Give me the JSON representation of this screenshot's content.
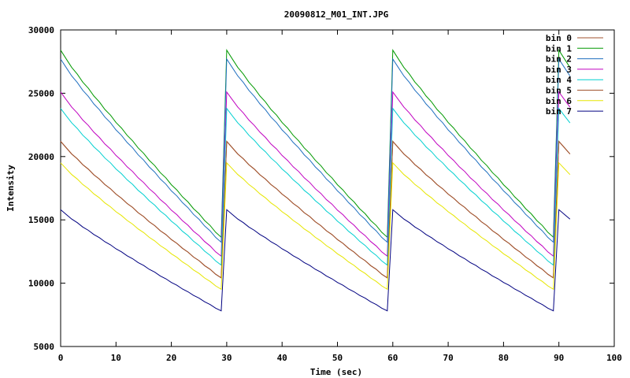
{
  "chart_data": {
    "type": "line",
    "title": "20090812_M01_INT.JPG",
    "xlabel": "Time (sec)",
    "ylabel": "Intensity",
    "xlim": [
      0,
      100
    ],
    "ylim": [
      5000,
      30000
    ],
    "x_ticks": [
      "0",
      "10",
      "20",
      "30",
      "40",
      "50",
      "60",
      "70",
      "80",
      "90",
      "100"
    ],
    "y_ticks": [
      "5000",
      "10000",
      "15000",
      "20000",
      "25000",
      "30000"
    ],
    "grid": false,
    "legend_position": "top-right",
    "x": [
      0,
      1,
      2,
      3,
      4,
      5,
      6,
      7,
      8,
      9,
      10,
      11,
      12,
      13,
      14,
      15,
      16,
      17,
      18,
      19,
      20,
      21,
      22,
      23,
      24,
      25,
      26,
      27,
      28,
      29,
      30,
      31,
      32,
      33,
      34,
      35,
      36,
      37,
      38,
      39,
      40,
      41,
      42,
      43,
      44,
      45,
      46,
      47,
      48,
      49,
      50,
      51,
      52,
      53,
      54,
      55,
      56,
      57,
      58,
      59,
      60,
      61,
      62,
      63,
      64,
      65,
      66,
      67,
      68,
      69,
      70,
      71,
      72,
      73,
      74,
      75,
      76,
      77,
      78,
      79,
      80,
      81,
      82,
      83,
      84,
      85,
      86,
      87,
      88,
      89,
      90,
      91,
      92
    ],
    "series": [
      {
        "name": "bin 0",
        "color": "#a0522d",
        "start": 21200,
        "end": 10400
      },
      {
        "name": "bin 1",
        "color": "#009900",
        "start": 28400,
        "end": 13600
      },
      {
        "name": "bin 2",
        "color": "#1f6fbf",
        "start": 27700,
        "end": 13200
      },
      {
        "name": "bin 3",
        "color": "#c000c0",
        "start": 25100,
        "end": 12100
      },
      {
        "name": "bin 4",
        "color": "#00d0d0",
        "start": 23800,
        "end": 11400
      },
      {
        "name": "bin 5",
        "color": "#a0522d",
        "start": 21200,
        "end": 10400
      },
      {
        "name": "bin 6",
        "color": "#e6e600",
        "start": 19500,
        "end": 9500
      },
      {
        "name": "bin 7",
        "color": "#000080",
        "start": 15800,
        "end": 7800
      }
    ]
  }
}
